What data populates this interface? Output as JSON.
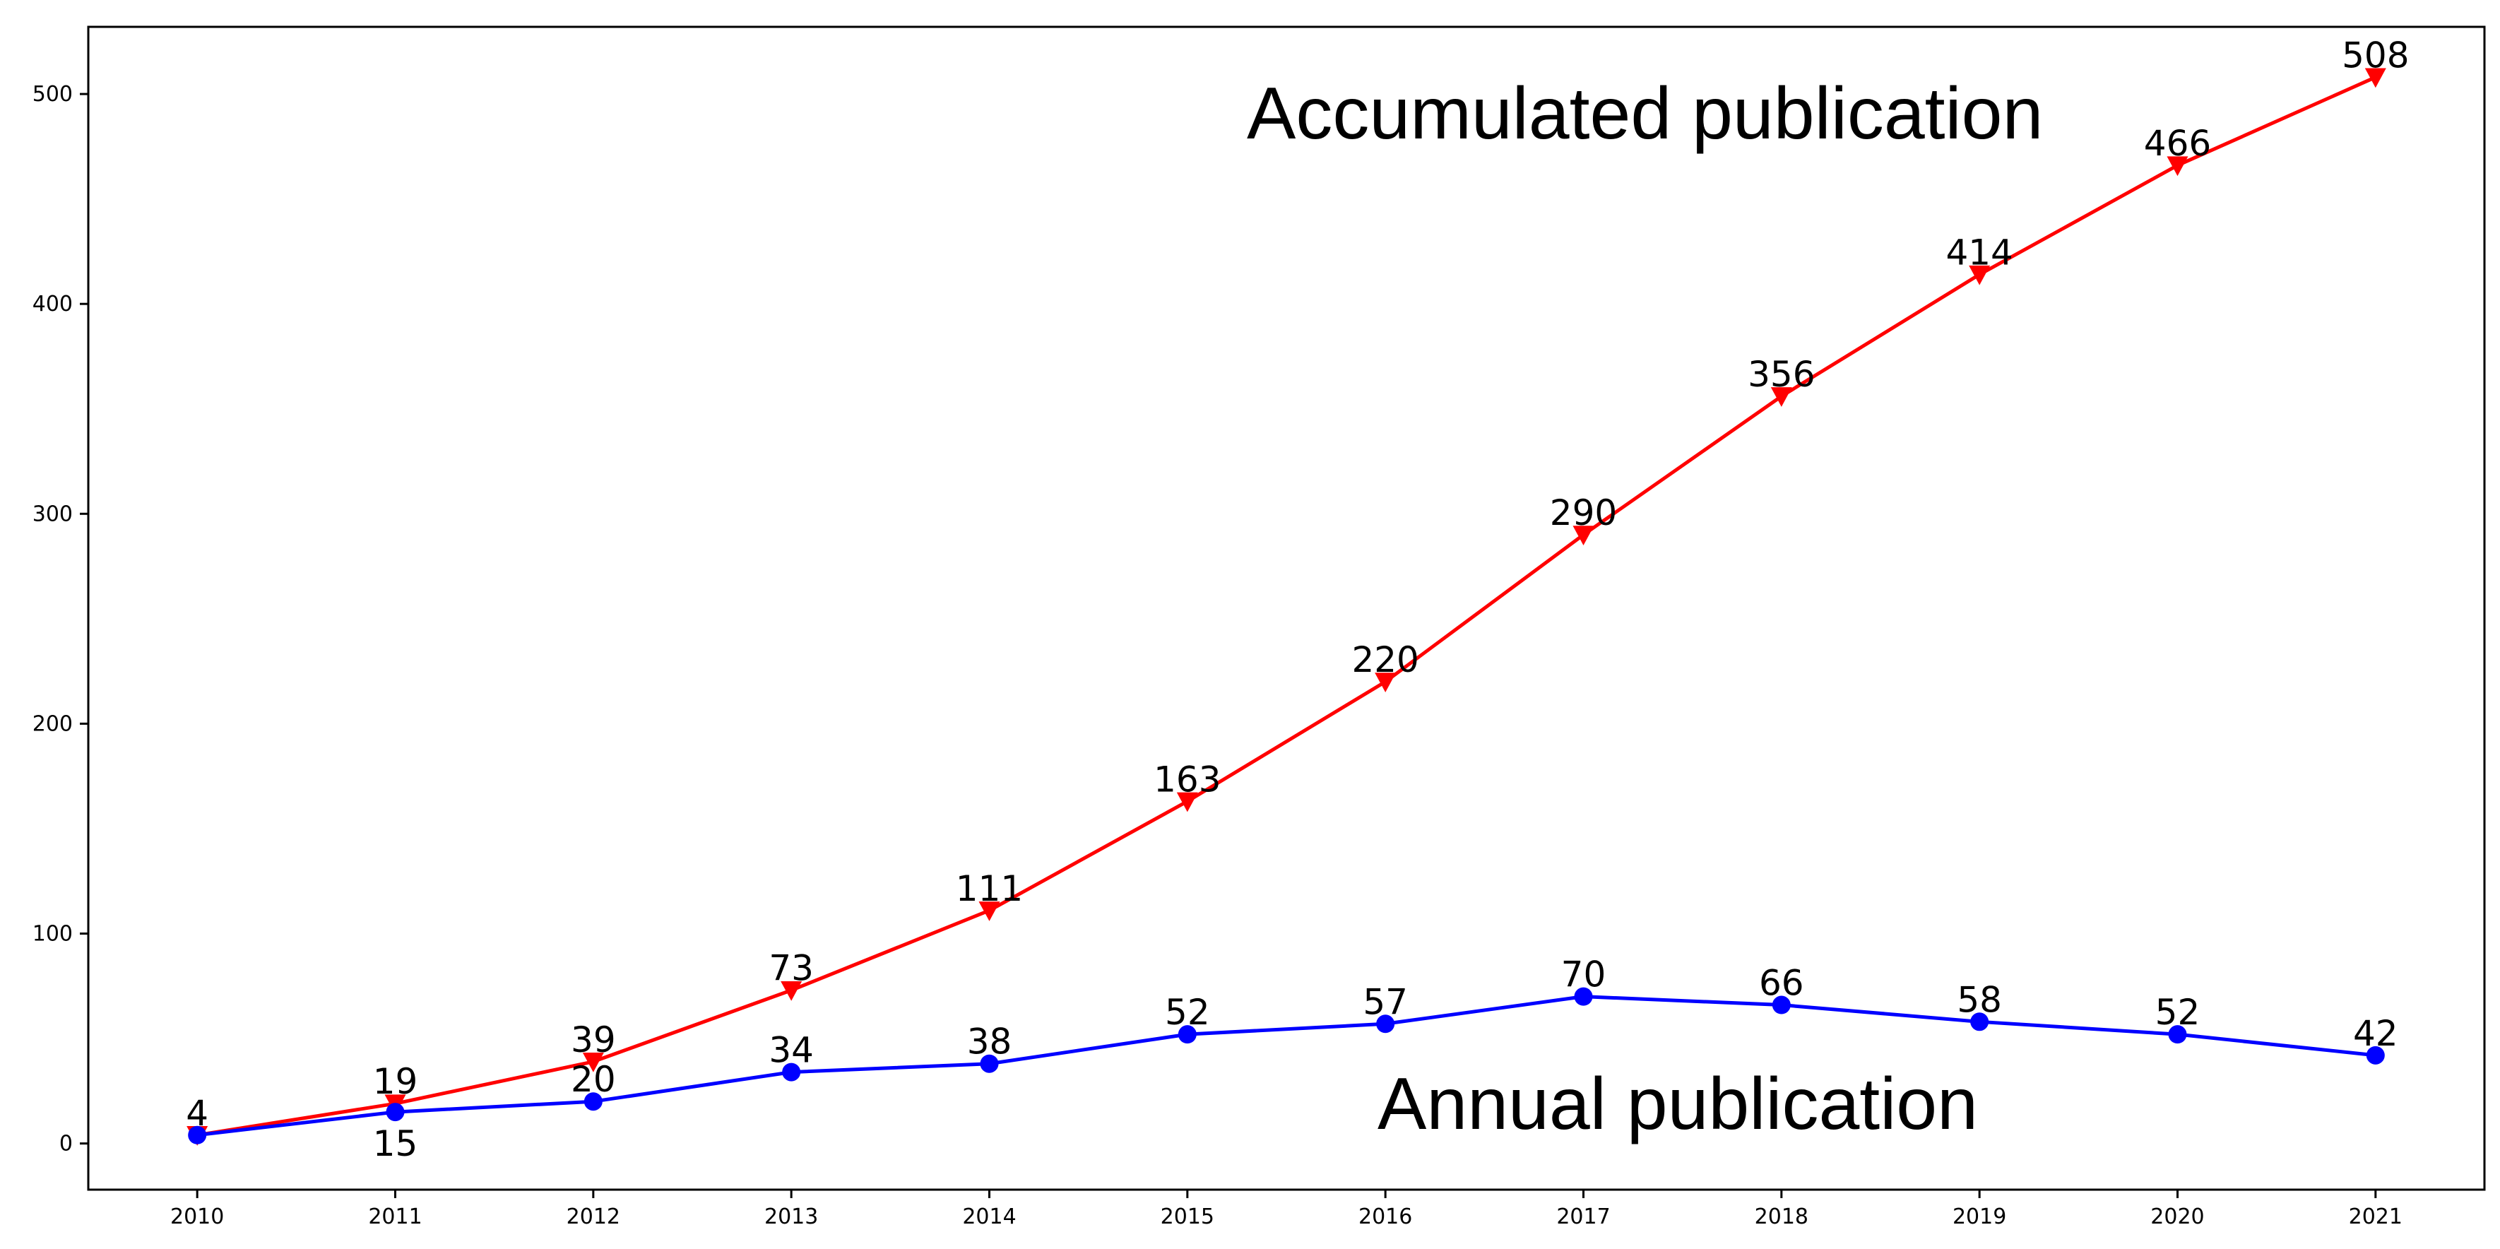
{
  "chart_data": {
    "type": "line",
    "title": "",
    "xlabel": "",
    "ylabel": "",
    "x": [
      2010,
      2011,
      2012,
      2013,
      2014,
      2015,
      2016,
      2017,
      2018,
      2019,
      2020,
      2021
    ],
    "x_tick_labels": [
      "2010",
      "2011",
      "2012",
      "2013",
      "2014",
      "2015",
      "2016",
      "2017",
      "2018",
      "2019",
      "2020",
      "2021"
    ],
    "y_ticks": [
      0,
      100,
      200,
      300,
      400,
      500
    ],
    "y_tick_labels": [
      "0",
      "100",
      "200",
      "300",
      "400",
      "500"
    ],
    "ylim": [
      -22,
      532
    ],
    "xlim": [
      2009.45,
      2021.55
    ],
    "grid": false,
    "legend": "none",
    "series": [
      {
        "key": "accumulated",
        "color": "#ff0000",
        "marker": "triangle-down",
        "values": [
          4,
          19,
          39,
          73,
          111,
          163,
          220,
          290,
          356,
          414,
          466,
          508
        ],
        "labels": [
          "4",
          "19",
          "39",
          "73",
          "111",
          "163",
          "220",
          "290",
          "356",
          "414",
          "466",
          "508"
        ]
      },
      {
        "key": "annual",
        "color": "#0000ff",
        "marker": "circle",
        "values": [
          4,
          15,
          20,
          34,
          38,
          52,
          57,
          70,
          66,
          58,
          52,
          42
        ],
        "labels": [
          "",
          "15",
          "20",
          "34",
          "38",
          "52",
          "57",
          "70",
          "66",
          "58",
          "52",
          "42"
        ]
      }
    ],
    "annotations": [
      {
        "text": "Accumulated publication",
        "series": "accumulated"
      },
      {
        "text": "Annual publication",
        "series": "annual"
      }
    ]
  }
}
